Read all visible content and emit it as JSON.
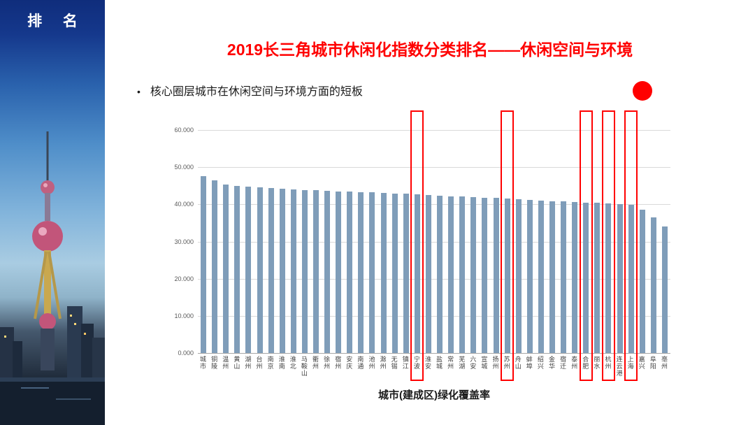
{
  "sidebar": {
    "title": "排 名"
  },
  "slide": {
    "title": "2019长三角城市休闲化指数分类排名——休闲空间与环境",
    "bullet_marker": "•",
    "bullet": "核心圈层城市在休闲空间与环境方面的短板"
  },
  "annotations": {
    "red_dot_color": "#ff0000"
  },
  "chart_data": {
    "type": "bar",
    "title": "",
    "xlabel": "城市(建成区)绿化覆盖率",
    "ylabel": "",
    "ylim": [
      0,
      60
    ],
    "yticks": [
      0,
      10,
      20,
      30,
      40,
      50,
      60
    ],
    "ytick_labels": [
      "0.000",
      "10.000",
      "20.000",
      "30.000",
      "40.000",
      "50.000",
      "60.000"
    ],
    "grid": true,
    "legend_position": "none",
    "bar_color": "#7f9db9",
    "highlight_color": "#ff0000",
    "categories": [
      "城市",
      "铜陵",
      "温州",
      "黄山",
      "湖州",
      "台州",
      "南京",
      "淮南",
      "淮北",
      "马鞍山",
      "衢州",
      "徐州",
      "宿州",
      "安庆",
      "南通",
      "池州",
      "滁州",
      "无锡",
      "镇江",
      "宁波",
      "淮安",
      "盐城",
      "常州",
      "芜湖",
      "六安",
      "宣城",
      "扬州",
      "苏州",
      "舟山",
      "蚌埠",
      "绍兴",
      "金华",
      "宿迁",
      "泰州",
      "合肥",
      "丽水",
      "杭州",
      "连云港",
      "上海",
      "嘉兴",
      "阜阳",
      "亳州"
    ],
    "values": [
      47.5,
      46.5,
      45.3,
      45.0,
      44.8,
      44.6,
      44.4,
      44.2,
      44.0,
      43.9,
      43.8,
      43.6,
      43.5,
      43.4,
      43.3,
      43.2,
      43.0,
      42.9,
      42.8,
      42.7,
      42.5,
      42.4,
      42.2,
      42.1,
      42.0,
      41.8,
      41.7,
      41.5,
      41.3,
      41.2,
      41.0,
      40.9,
      40.8,
      40.6,
      40.5,
      40.4,
      40.3,
      40.1,
      39.8,
      38.6,
      36.4,
      34.0
    ],
    "highlighted": [
      "宁波",
      "苏州",
      "合肥",
      "杭州",
      "上海"
    ]
  }
}
